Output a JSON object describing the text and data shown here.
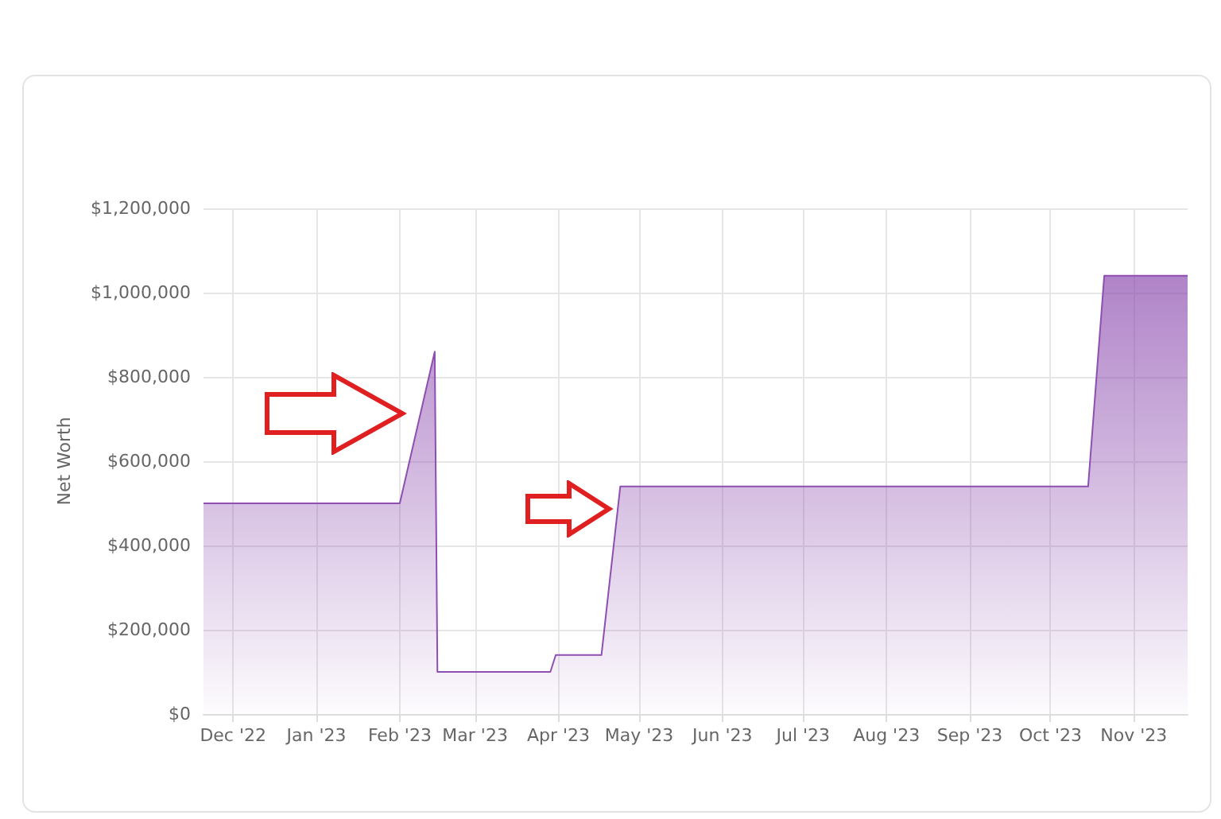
{
  "chart_data": {
    "type": "area",
    "ylabel": "Net Worth",
    "x": [
      "2022-11-20",
      "2023-02-01",
      "2023-02-14",
      "2023-02-15",
      "2023-03-29",
      "2023-03-31",
      "2023-04-17",
      "2023-04-24",
      "2023-10-15",
      "2023-10-21",
      "2023-11-21"
    ],
    "series": [
      {
        "color": "#8e4fb0",
        "values": [
          500000,
          500000,
          860000,
          100000,
          100000,
          140000,
          140000,
          540000,
          540000,
          1040000,
          1040000
        ]
      }
    ],
    "xlim": [
      "2022-11-20",
      "2023-11-21"
    ],
    "xticks": [
      {
        "value": "2022-12-01",
        "label": "Dec '22"
      },
      {
        "value": "2023-01-01",
        "label": "Jan '23"
      },
      {
        "value": "2023-02-01",
        "label": "Feb '23"
      },
      {
        "value": "2023-03-01",
        "label": "Mar '23"
      },
      {
        "value": "2023-04-01",
        "label": "Apr '23"
      },
      {
        "value": "2023-05-01",
        "label": "May '23"
      },
      {
        "value": "2023-06-01",
        "label": "Jun '23"
      },
      {
        "value": "2023-07-01",
        "label": "Jul '23"
      },
      {
        "value": "2023-08-01",
        "label": "Aug '23"
      },
      {
        "value": "2023-09-01",
        "label": "Sep '23"
      },
      {
        "value": "2023-10-01",
        "label": "Oct '23"
      },
      {
        "value": "2023-11-01",
        "label": "Nov '23"
      }
    ],
    "ylim": [
      0,
      1200000
    ],
    "yticks": [
      {
        "value": 0,
        "label": "$0"
      },
      {
        "value": 200000,
        "label": "$200,000"
      },
      {
        "value": 400000,
        "label": "$400,000"
      },
      {
        "value": 600000,
        "label": "$600,000"
      },
      {
        "value": 800000,
        "label": "$800,000"
      },
      {
        "value": 1000000,
        "label": "$1,000,000"
      },
      {
        "value": 1200000,
        "label": "$1,200,000"
      }
    ],
    "grid": true
  }
}
